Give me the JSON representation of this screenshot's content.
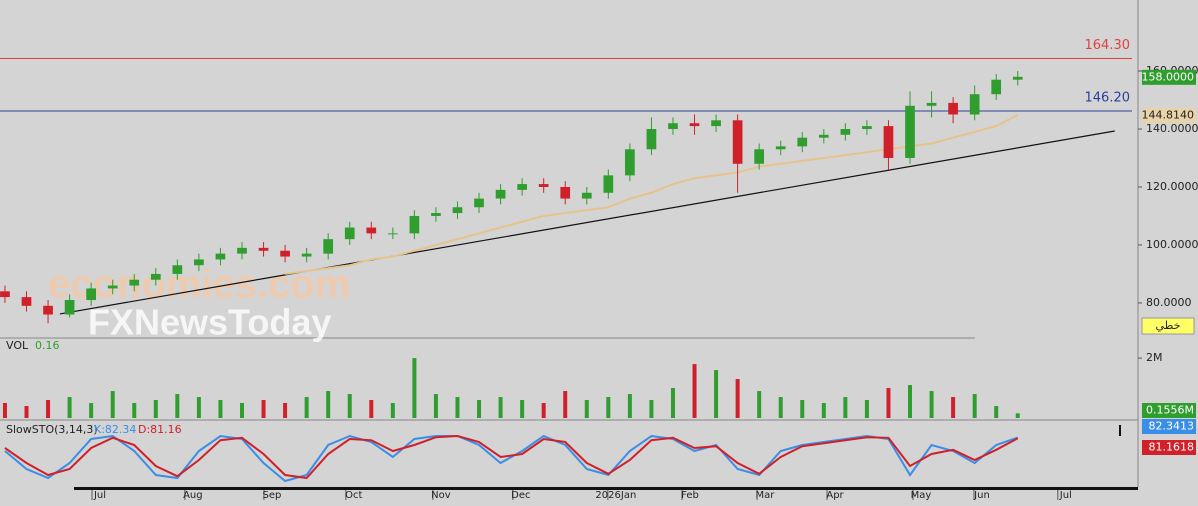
{
  "chart_data": [
    {
      "type": "candlestick",
      "x": [
        0,
        1,
        2,
        3,
        4,
        5,
        6,
        7,
        8,
        9,
        10,
        11,
        12,
        13,
        14,
        15,
        16,
        17,
        18,
        19,
        20,
        21,
        22,
        23,
        24,
        25,
        26,
        27,
        28,
        29,
        30,
        31,
        32,
        33,
        34,
        35,
        36,
        37,
        38,
        39,
        40,
        41,
        42,
        43,
        44,
        45,
        46,
        47
      ],
      "open": [
        84,
        82,
        79,
        76,
        81,
        85,
        86,
        88,
        90,
        93,
        95,
        97,
        99,
        98,
        96,
        97,
        102,
        106,
        104,
        104,
        110,
        111,
        113,
        116,
        119,
        121,
        120,
        116,
        118,
        124,
        133,
        140,
        142,
        141,
        143,
        128,
        133,
        134,
        137,
        138,
        140,
        141,
        130,
        148,
        149,
        145,
        152,
        157
      ],
      "high": [
        86,
        84,
        81,
        83,
        87,
        88,
        90,
        92,
        95,
        97,
        99,
        101,
        101,
        100,
        99,
        104,
        108,
        108,
        106,
        112,
        113,
        115,
        118,
        121,
        123,
        123,
        122,
        120,
        126,
        135,
        144,
        144,
        145,
        145,
        145,
        135,
        136,
        139,
        140,
        142,
        143,
        143,
        153,
        153,
        151,
        155,
        159,
        160
      ],
      "low": [
        80,
        77,
        73,
        75,
        79,
        83,
        84,
        86,
        88,
        91,
        93,
        95,
        96,
        94,
        94,
        95,
        100,
        102,
        102,
        102,
        108,
        109,
        111,
        114,
        117,
        118,
        114,
        114,
        116,
        122,
        131,
        138,
        138,
        139,
        118,
        126,
        131,
        132,
        135,
        136,
        138,
        126,
        128,
        144,
        142,
        143,
        150,
        155
      ],
      "close": [
        82,
        79,
        76,
        81,
        85,
        86,
        88,
        90,
        93,
        95,
        97,
        99,
        98,
        96,
        97,
        102,
        106,
        104,
        104,
        110,
        111,
        113,
        116,
        119,
        121,
        120,
        116,
        118,
        124,
        133,
        140,
        142,
        141,
        143,
        128,
        133,
        134,
        137,
        138,
        140,
        141,
        130,
        148,
        149,
        145,
        152,
        157,
        158
      ],
      "close_label": "158.0000",
      "up_color": "#2f9e2f",
      "down_color": "#d0202a",
      "ma": {
        "color": "#e6c38c",
        "values": [
          null,
          null,
          null,
          null,
          null,
          null,
          null,
          null,
          null,
          null,
          null,
          null,
          null,
          90,
          91,
          92,
          93,
          95,
          96,
          98,
          100,
          102,
          104,
          106,
          108,
          110,
          111,
          112,
          113,
          116,
          118,
          121,
          123,
          124,
          125,
          127,
          128,
          129,
          130,
          131,
          132,
          133,
          134,
          135,
          137,
          139,
          141,
          144.814
        ],
        "last_label": "144.8140"
      },
      "hlines": [
        {
          "value": 164.3,
          "label": "164.30",
          "color": "#e04040"
        },
        {
          "value": 146.2,
          "label": "146.20",
          "color": "#2a3f9a"
        }
      ],
      "trendline": {
        "x": [
          2.55,
          51.5
        ],
        "y": [
          76.2,
          139.3
        ],
        "color": "#111111"
      },
      "xlim": [
        -0.23,
        52.58
      ],
      "xticks": [
        {
          "value": 4.41,
          "label": "Jul"
        },
        {
          "value": 8.72,
          "label": "Aug"
        },
        {
          "value": 12.39,
          "label": "Sep"
        },
        {
          "value": 16.19,
          "label": "Oct"
        },
        {
          "value": 20.23,
          "label": "Nov"
        },
        {
          "value": 23.94,
          "label": "Dec"
        },
        {
          "value": 28.35,
          "label": "2026Jan"
        },
        {
          "value": 31.79,
          "label": "Feb"
        },
        {
          "value": 35.27,
          "label": "Mar"
        },
        {
          "value": 38.52,
          "label": "Apr"
        },
        {
          "value": 42.51,
          "label": "May"
        },
        {
          "value": 45.34,
          "label": "Jun"
        },
        {
          "value": 49.23,
          "label": "Jul"
        }
      ],
      "ylim": [
        67.9,
        184.5
      ],
      "yticks": [
        {
          "value": 80,
          "label": "80.0000"
        },
        {
          "value": 100,
          "label": "100.0000"
        },
        {
          "value": 120,
          "label": "120.0000"
        },
        {
          "value": 140,
          "label": "140.0000"
        },
        {
          "value": 160,
          "label": "160.0000"
        }
      ],
      "button_label": "خطي",
      "watermark": [
        "economies.com",
        "FXNewsToday"
      ]
    },
    {
      "type": "bar",
      "title": "VOL",
      "values": [
        0.5,
        0.4,
        0.6,
        0.7,
        0.5,
        0.9,
        0.5,
        0.6,
        0.8,
        0.7,
        0.6,
        0.5,
        0.6,
        0.5,
        0.7,
        0.9,
        0.8,
        0.6,
        0.5,
        2.0,
        0.8,
        0.7,
        0.6,
        0.7,
        0.6,
        0.5,
        0.9,
        0.6,
        0.7,
        0.8,
        0.6,
        1.0,
        1.8,
        1.6,
        1.3,
        0.9,
        0.7,
        0.6,
        0.5,
        0.7,
        0.6,
        1.0,
        1.1,
        0.9,
        0.7,
        0.8,
        0.4,
        0.1556
      ],
      "last": {
        "value": 0.1556,
        "label": "0.1556M",
        "short_label": "0.16"
      },
      "ylim": [
        0,
        2.57
      ],
      "yticks": [
        {
          "value": 2,
          "label": "2M"
        }
      ]
    },
    {
      "type": "line",
      "title": "SlowSTO(3,14,3)",
      "series": [
        {
          "name": "K:82.34",
          "color": "#3a8ee6",
          "values": [
            60,
            30,
            15,
            40,
            80,
            85,
            60,
            20,
            15,
            60,
            85,
            80,
            40,
            10,
            20,
            70,
            85,
            75,
            50,
            80,
            85,
            85,
            70,
            40,
            60,
            85,
            70,
            30,
            20,
            60,
            85,
            80,
            60,
            70,
            30,
            20,
            60,
            70,
            75,
            80,
            85,
            80,
            20,
            70,
            60,
            40,
            70,
            82.3413
          ],
          "last_label": "82.3413"
        },
        {
          "name": "D:81.16",
          "color": "#d0202a",
          "values": [
            65,
            40,
            20,
            30,
            65,
            82,
            70,
            35,
            18,
            45,
            78,
            82,
            55,
            20,
            15,
            55,
            80,
            78,
            60,
            70,
            83,
            85,
            75,
            50,
            55,
            80,
            75,
            40,
            22,
            45,
            78,
            82,
            65,
            68,
            40,
            22,
            50,
            68,
            73,
            78,
            83,
            82,
            35,
            55,
            62,
            45,
            62,
            81.1618
          ],
          "last_label": "81.1618"
        }
      ],
      "ylim": [
        0,
        100
      ]
    }
  ]
}
